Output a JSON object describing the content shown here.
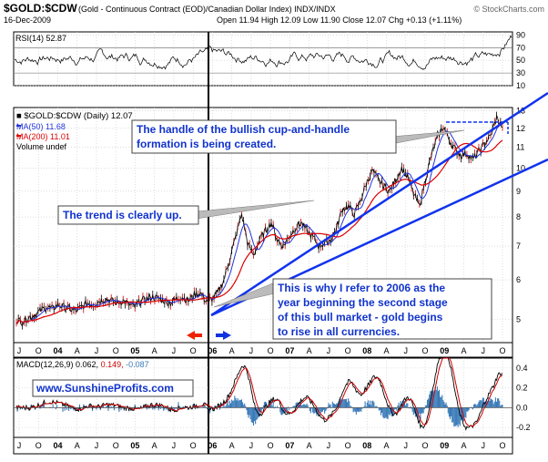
{
  "header": {
    "symbol": "$GOLD:$CDW",
    "description": "(Gold - Continuous Contract (EOD)/Canadian Dollar Index)  INDX/INDX",
    "watermark": "© StockCharts.com",
    "date": "16-Dec-2009",
    "quote": "Open 11.94  High 12.09  Low 11.90  Close 12.07  Chg +0.13 (+1.11%)"
  },
  "colors": {
    "background": "#ffffff",
    "panel_bg": "#ffffff",
    "grid": "#c8c8c8",
    "price": "#000000",
    "ma50": "#2233dd",
    "ma200": "#dd0000",
    "candle_up": "#cc0000",
    "trend_line": "#1133ee",
    "callout_text": "#1133cc",
    "arrow_left": "#ee2200",
    "arrow_right": "#1133dd",
    "macd_hist": "#3a7ab8",
    "macd_signal": "#cc0000"
  },
  "rsi_panel": {
    "legend": "RSI(14) 52.87",
    "ticks": [
      "90",
      "70",
      "50",
      "30",
      "10"
    ]
  },
  "price_panel": {
    "legend_title": "$GOLD:$CDW (Daily) 12.07",
    "legend_ma50": "MA(50) 11.68",
    "legend_ma200": "MA(200) 11.01",
    "legend_volume": "Volume undef",
    "ticks": [
      "13",
      "12",
      "11",
      "10",
      "9",
      "8",
      "7",
      "6",
      "5"
    ]
  },
  "macd_panel": {
    "legend_label": "MACD(12,26,9)",
    "legend_values": [
      "0.062",
      "0.149",
      "-0.087"
    ],
    "ticks": [
      "0.4",
      "0.2",
      "0.0",
      "-0.2"
    ],
    "website": "www.SunshineProfits.com"
  },
  "x_axis": {
    "labels": [
      "J",
      "O",
      "04",
      "A",
      "J",
      "O",
      "05",
      "A",
      "J",
      "O",
      "06",
      "A",
      "J",
      "O",
      "07",
      "A",
      "J",
      "O",
      "08",
      "A",
      "J",
      "O",
      "09",
      "A",
      "J",
      "O"
    ]
  },
  "annotations": {
    "handle_note": [
      "The handle of the bullish cup-and-handle",
      "formation is being created."
    ],
    "trend_note": "The trend is clearly up.",
    "year_note": [
      "This is why I refer to 2006 as the",
      "year beginning the second stage",
      "of this bull market - gold begins",
      "to rise in all currencies."
    ]
  },
  "chart_data": {
    "type": "line",
    "title": "$GOLD:$CDW (Gold - Continuous Contract (EOD)/Canadian Dollar Index)",
    "date": "16-Dec-2009",
    "x_range": [
      "2003-07",
      "2009-12"
    ],
    "price_ylim": [
      4.5,
      13.2
    ],
    "price_scale": "log",
    "close_monthly": [
      5.0,
      4.95,
      5.05,
      5.1,
      5.2,
      5.3,
      5.25,
      5.35,
      5.3,
      5.25,
      5.2,
      5.3,
      5.4,
      5.35,
      5.45,
      5.5,
      5.45,
      5.4,
      5.45,
      5.35,
      5.3,
      5.45,
      5.5,
      5.55,
      5.5,
      5.45,
      5.4,
      5.5,
      5.55,
      5.45,
      5.6,
      5.65,
      5.45,
      5.5,
      5.65,
      6.0,
      6.6,
      7.3,
      8.1,
      7.1,
      6.7,
      7.2,
      7.5,
      7.8,
      7.2,
      7.0,
      7.3,
      7.6,
      7.8,
      7.5,
      7.3,
      7.0,
      7.1,
      7.2,
      7.6,
      8.3,
      8.4,
      8.1,
      8.6,
      9.3,
      9.9,
      9.5,
      9.2,
      9.0,
      9.5,
      10.0,
      9.6,
      8.9,
      8.4,
      9.5,
      10.6,
      11.5,
      12.1,
      11.4,
      10.9,
      10.6,
      10.7,
      10.4,
      10.8,
      11.2,
      11.6,
      12.6,
      12.07
    ],
    "ma50_last": 11.68,
    "ma200_last": 11.01,
    "rsi_last": 52.87,
    "rsi_ylim": [
      10,
      95
    ],
    "macd": {
      "macd": 0.062,
      "signal": 0.149,
      "histogram": -0.087,
      "ylim": [
        -0.3,
        0.5
      ]
    },
    "reference_line_2006": "06",
    "handle_level": 12.5,
    "trend_channel": "upward, from mid-2005 to end of 2009"
  }
}
